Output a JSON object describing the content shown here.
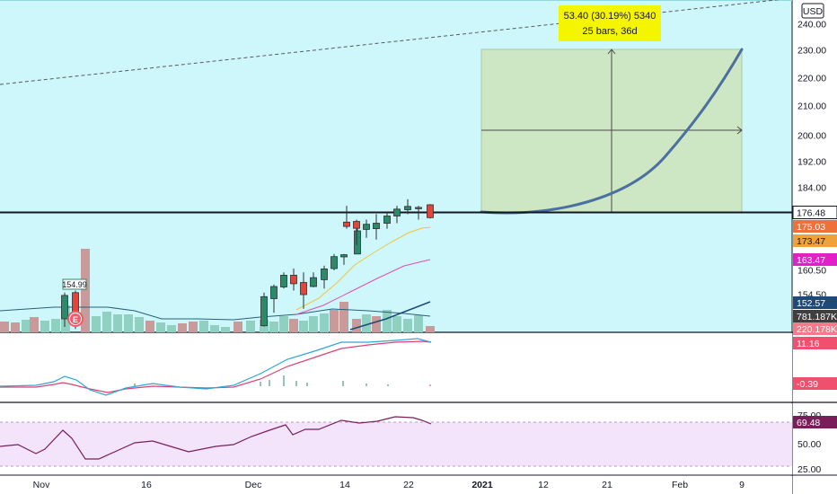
{
  "chart_data": {
    "type": "candlestick",
    "currency": "USD",
    "price_axis": {
      "ticks": [
        "240.00",
        "230.00",
        "220.00",
        "210.00",
        "200.00",
        "192.00",
        "184.00",
        "160.50",
        "154.50"
      ]
    },
    "time_axis": {
      "ticks": [
        "Nov",
        "16",
        "Dec",
        "14",
        "22",
        "2021",
        "12",
        "21",
        "Feb",
        "9"
      ]
    },
    "badges": [
      {
        "value": "176.48",
        "bg": "#ffffff",
        "fg": "dark",
        "border": "#131722"
      },
      {
        "value": "175.03",
        "bg": "#f0703a",
        "fg": "light"
      },
      {
        "value": "173.47",
        "bg": "#f0a23a",
        "fg": "dark"
      },
      {
        "value": "163.47",
        "bg": "#e020c8",
        "fg": "light"
      },
      {
        "value": "152.57",
        "bg": "#1e4a7a",
        "fg": "light"
      },
      {
        "value": "781.187K",
        "bg": "#3f3f3f",
        "fg": "light"
      },
      {
        "value": "220.178K",
        "bg": "#f07c8c",
        "fg": "light"
      },
      {
        "value": "11.16",
        "bg": "#f0506e",
        "fg": "light"
      },
      {
        "value": "-0.39",
        "bg": "#f0506e",
        "fg": "light"
      },
      {
        "value": "69.48",
        "bg": "#7a1e5a",
        "fg": "light"
      }
    ],
    "projection_tooltip": {
      "line1": "53.40 (30.19%) 5340",
      "line2": "25 bars, 36d"
    },
    "callouts": {
      "high_label": "154.99",
      "earnings_marker": "E"
    },
    "rsi_axis": {
      "ticks": [
        "75.00",
        "50.00",
        "25.00"
      ]
    },
    "candles": [
      {
        "o": 148.5,
        "h": 154.99,
        "l": 146.5,
        "c": 154.3
      },
      {
        "o": 154.99,
        "h": 155.5,
        "l": 146.0,
        "c": 147.0
      },
      {
        "o": 146.8,
        "h": 155.0,
        "l": 146.6,
        "c": 154.0
      },
      {
        "o": 153.5,
        "h": 157.0,
        "l": 150.0,
        "c": 156.5
      },
      {
        "o": 156.4,
        "h": 160.0,
        "l": 156.0,
        "c": 159.3
      },
      {
        "o": 159.3,
        "h": 161.0,
        "l": 155.5,
        "c": 157.2
      },
      {
        "o": 157.5,
        "h": 160.0,
        "l": 151.0,
        "c": 154.5
      },
      {
        "o": 156.5,
        "h": 160.0,
        "l": 156.3,
        "c": 158.7
      },
      {
        "o": 158.2,
        "h": 161.8,
        "l": 156.0,
        "c": 160.9
      },
      {
        "o": 161.0,
        "h": 165.0,
        "l": 160.5,
        "c": 164.3
      },
      {
        "o": 164.2,
        "h": 165.0,
        "l": 162.0,
        "c": 164.8
      },
      {
        "o": 165.0,
        "h": 172.0,
        "l": 165.0,
        "c": 171.4
      },
      {
        "o": 173.8,
        "h": 178.5,
        "l": 172.0,
        "c": 172.6
      },
      {
        "o": 174.0,
        "h": 174.5,
        "l": 167.5,
        "c": 172.1
      },
      {
        "o": 171.8,
        "h": 174.5,
        "l": 169.5,
        "c": 173.2
      },
      {
        "o": 172.0,
        "h": 176.0,
        "l": 169.0,
        "c": 173.5
      },
      {
        "o": 173.5,
        "h": 176.5,
        "l": 172.0,
        "c": 175.5
      },
      {
        "o": 175.5,
        "h": 178.5,
        "l": 173.5,
        "c": 177.5
      },
      {
        "o": 177.3,
        "h": 180.5,
        "l": 176.0,
        "c": 178.3
      },
      {
        "o": 178.0,
        "h": 178.5,
        "l": 174.5,
        "c": 177.6
      },
      {
        "o": 178.8,
        "h": 179.0,
        "l": 174.8,
        "c": 175.03
      }
    ],
    "sma_short": [
      170.4,
      171.2,
      172.0,
      172.8,
      173.5,
      174.3,
      175.03
    ],
    "sma_mid": [
      159.5,
      161.0,
      163.0,
      164.8,
      166.5,
      168.0,
      168.8
    ],
    "sma_long_volume_pane": [
      152.57
    ]
  }
}
